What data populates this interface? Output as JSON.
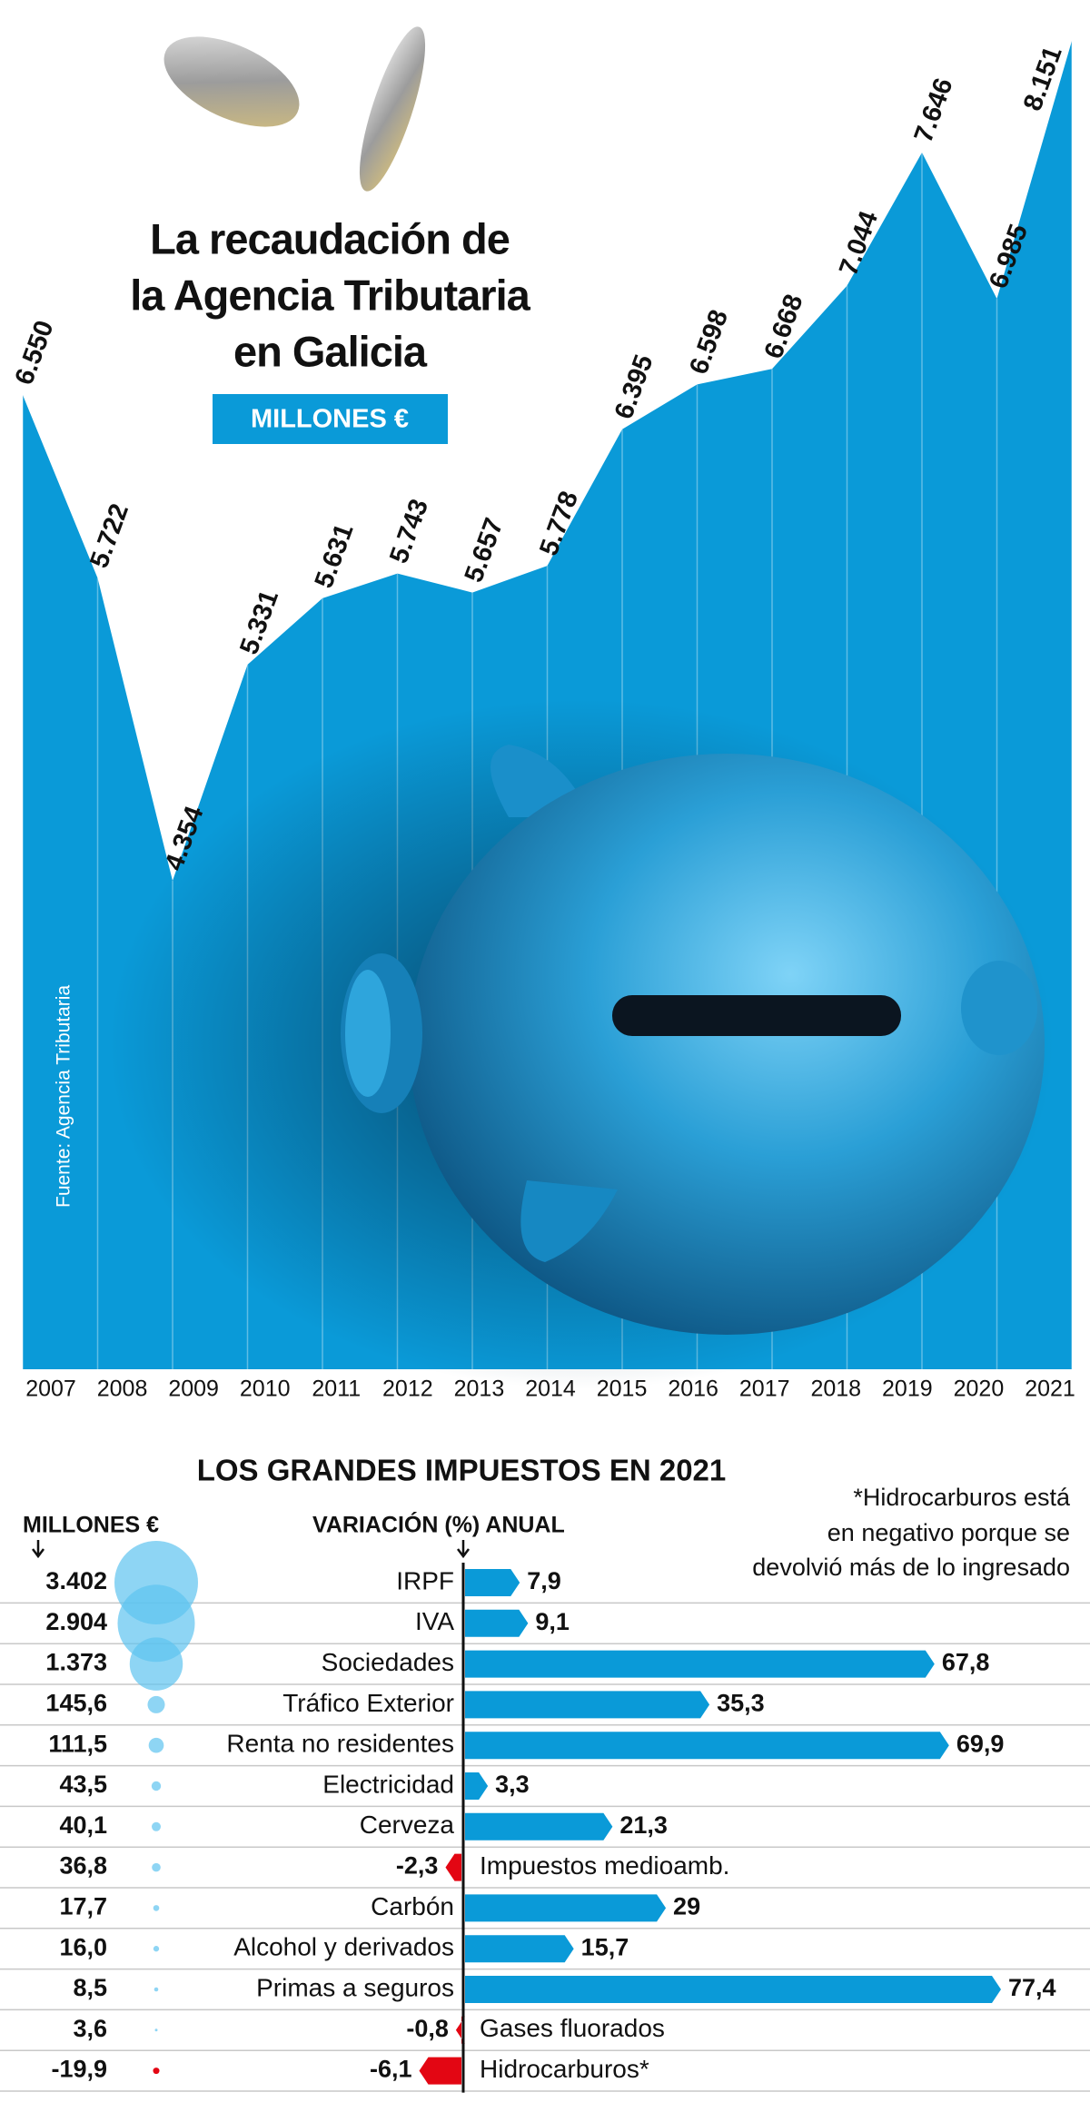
{
  "chart_data": [
    {
      "type": "area",
      "title": [
        "La recaudación de",
        "la Agencia Tributaria",
        "en Galicia"
      ],
      "subtitle": "MILLONES €",
      "source": "Fuente: Agencia Tributaria",
      "color": "#0a9ad8",
      "categories": [
        "2007",
        "2008",
        "2009",
        "2010",
        "2011",
        "2012",
        "2013",
        "2014",
        "2015",
        "2016",
        "2017",
        "2018",
        "2019",
        "2020",
        "2021"
      ],
      "values": [
        6550,
        5722,
        4354,
        5331,
        5631,
        5743,
        5657,
        5778,
        6395,
        6598,
        6668,
        7044,
        7646,
        6985,
        8151
      ],
      "value_labels": [
        "6.550",
        "5.722",
        "4.354",
        "5.331",
        "5.631",
        "5.743",
        "5.657",
        "5.778",
        "6.395",
        "6.598",
        "6.668",
        "7.044",
        "7.646",
        "6.985",
        "8.151"
      ]
    },
    {
      "type": "bar",
      "title": "LOS GRANDES IMPUESTOS EN 2021",
      "note": [
        "*Hidrocarburos está",
        "en negativo porque se",
        "devolvió más de lo ingresado"
      ],
      "categories": [
        "IRPF",
        "IVA",
        "Sociedades",
        "Tráfico Exterior",
        "Renta no residentes",
        "Electricidad",
        "Cerveza",
        "Impuestos medioamb.",
        "Carbón",
        "Alcohol y derivados",
        "Primas a seguros",
        "Gases fluorados",
        "Hidrocarburos*"
      ],
      "series": [
        {
          "name": "MILLONES €",
          "color": "#5ec3ef",
          "negative_color": "#e30613",
          "values": [
            3402,
            2904,
            1373,
            145.6,
            111.5,
            43.5,
            40.1,
            36.8,
            17.7,
            16.0,
            8.5,
            3.6,
            -19.9
          ],
          "value_labels": [
            "3.402",
            "2.904",
            "1.373",
            "145,6",
            "111,5",
            "43,5",
            "40,1",
            "36,8",
            "17,7",
            "16,0",
            "8,5",
            "3,6",
            "-19,9"
          ]
        },
        {
          "name": "VARIACIÓN (%) ANUAL",
          "color": "#0a9ad8",
          "negative_color": "#e30613",
          "values": [
            7.9,
            9.1,
            67.8,
            35.3,
            69.9,
            3.3,
            21.3,
            -2.3,
            29,
            15.7,
            77.4,
            -0.8,
            -6.1
          ],
          "value_labels": [
            "7,9",
            "9,1",
            "67,8",
            "35,3",
            "69,9",
            "3,3",
            "21,3",
            "-2,3",
            "29",
            "15,7",
            "77,4",
            "-0,8",
            "-6,1"
          ]
        }
      ]
    }
  ]
}
